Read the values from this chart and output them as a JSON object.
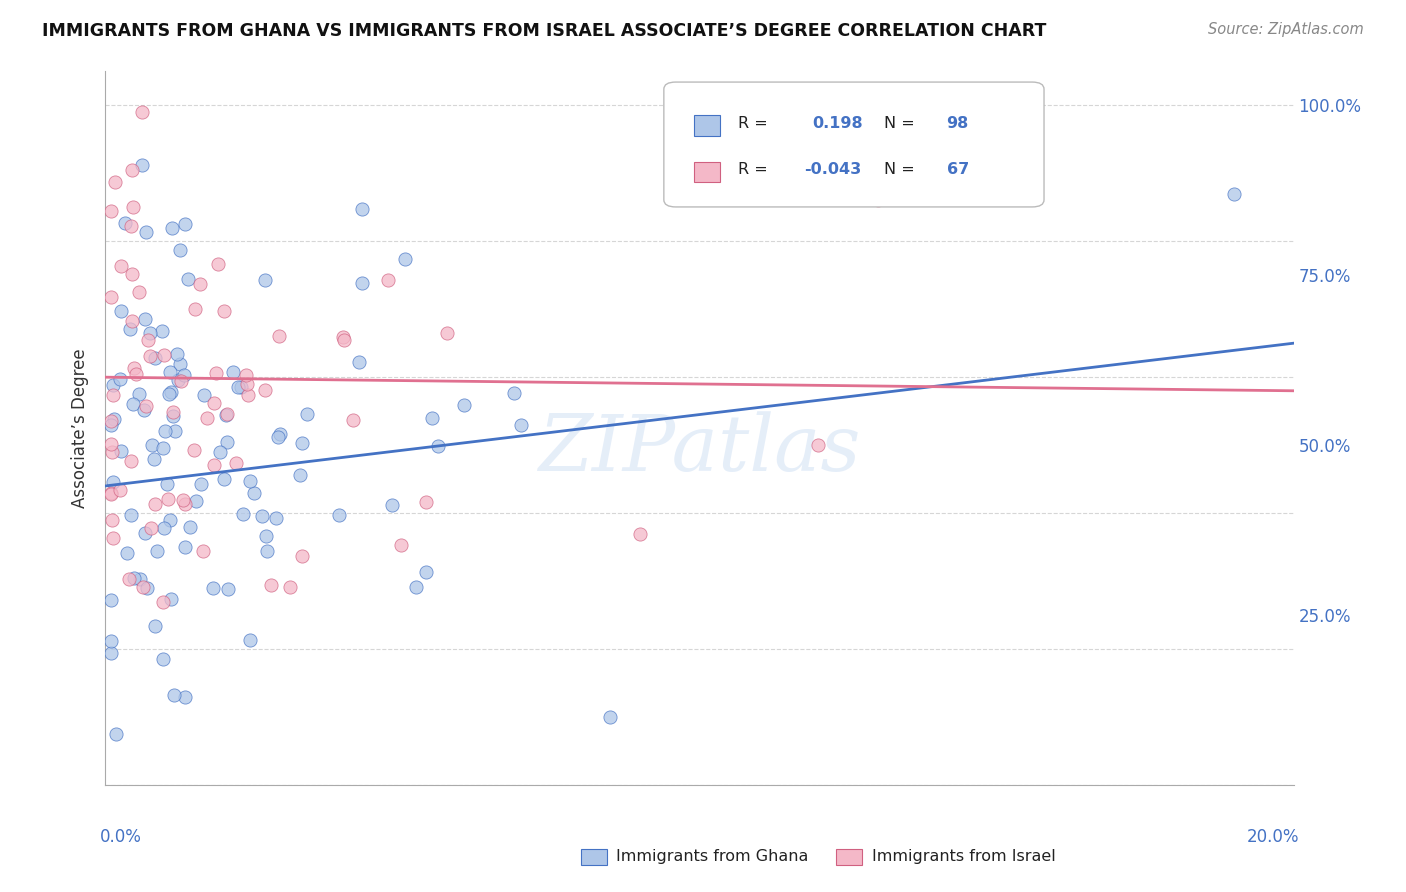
{
  "title": "IMMIGRANTS FROM GHANA VS IMMIGRANTS FROM ISRAEL ASSOCIATE’S DEGREE CORRELATION CHART",
  "source": "Source: ZipAtlas.com",
  "ylabel": "Associate’s Degree",
  "ytick_labels": [
    "100.0%",
    "75.0%",
    "50.0%",
    "25.0%"
  ],
  "ytick_positions": [
    1.0,
    0.75,
    0.5,
    0.25
  ],
  "r_ghana": 0.198,
  "n_ghana": 98,
  "r_israel": -0.043,
  "n_israel": 67,
  "color_ghana": "#aec6e8",
  "color_israel": "#f4b8c8",
  "trendline_ghana": "#4472c4",
  "trendline_israel": "#e07090",
  "legend_color": "#4472c4",
  "watermark": "ZIPatlas"
}
